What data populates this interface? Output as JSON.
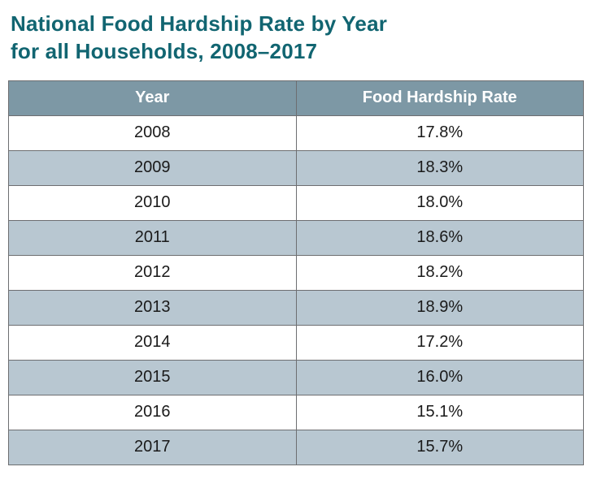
{
  "title": {
    "line1": "National Food Hardship Rate by Year",
    "line2": "for all Households, 2008–2017"
  },
  "table": {
    "headers": [
      "Year",
      "Food Hardship Rate"
    ],
    "rows": [
      {
        "year": "2008",
        "rate": "17.8%"
      },
      {
        "year": "2009",
        "rate": "18.3%"
      },
      {
        "year": "2010",
        "rate": "18.0%"
      },
      {
        "year": "2011",
        "rate": "18.6%"
      },
      {
        "year": "2012",
        "rate": "18.2%"
      },
      {
        "year": "2013",
        "rate": "18.9%"
      },
      {
        "year": "2014",
        "rate": "17.2%"
      },
      {
        "year": "2015",
        "rate": "16.0%"
      },
      {
        "year": "2016",
        "rate": "15.1%"
      },
      {
        "year": "2017",
        "rate": "15.7%"
      }
    ]
  },
  "colors": {
    "title_text": "#116571",
    "header_bg": "#7d98a5",
    "header_text": "#ffffff",
    "row_odd_bg": "#b8c7d1",
    "row_even_bg": "#ffffff",
    "body_text": "#1a1a1a",
    "border": "#6d6e71"
  },
  "chart_data": {
    "type": "table",
    "title": "National Food Hardship Rate by Year for all Households, 2008–2017",
    "columns": [
      "Year",
      "Food Hardship Rate"
    ],
    "categories": [
      "2008",
      "2009",
      "2010",
      "2011",
      "2012",
      "2013",
      "2014",
      "2015",
      "2016",
      "2017"
    ],
    "values": [
      17.8,
      18.3,
      18.0,
      18.6,
      18.2,
      18.9,
      17.2,
      16.0,
      15.1,
      15.7
    ],
    "unit": "%",
    "layout": {
      "grid": true,
      "alternating_row_shading": true
    }
  }
}
